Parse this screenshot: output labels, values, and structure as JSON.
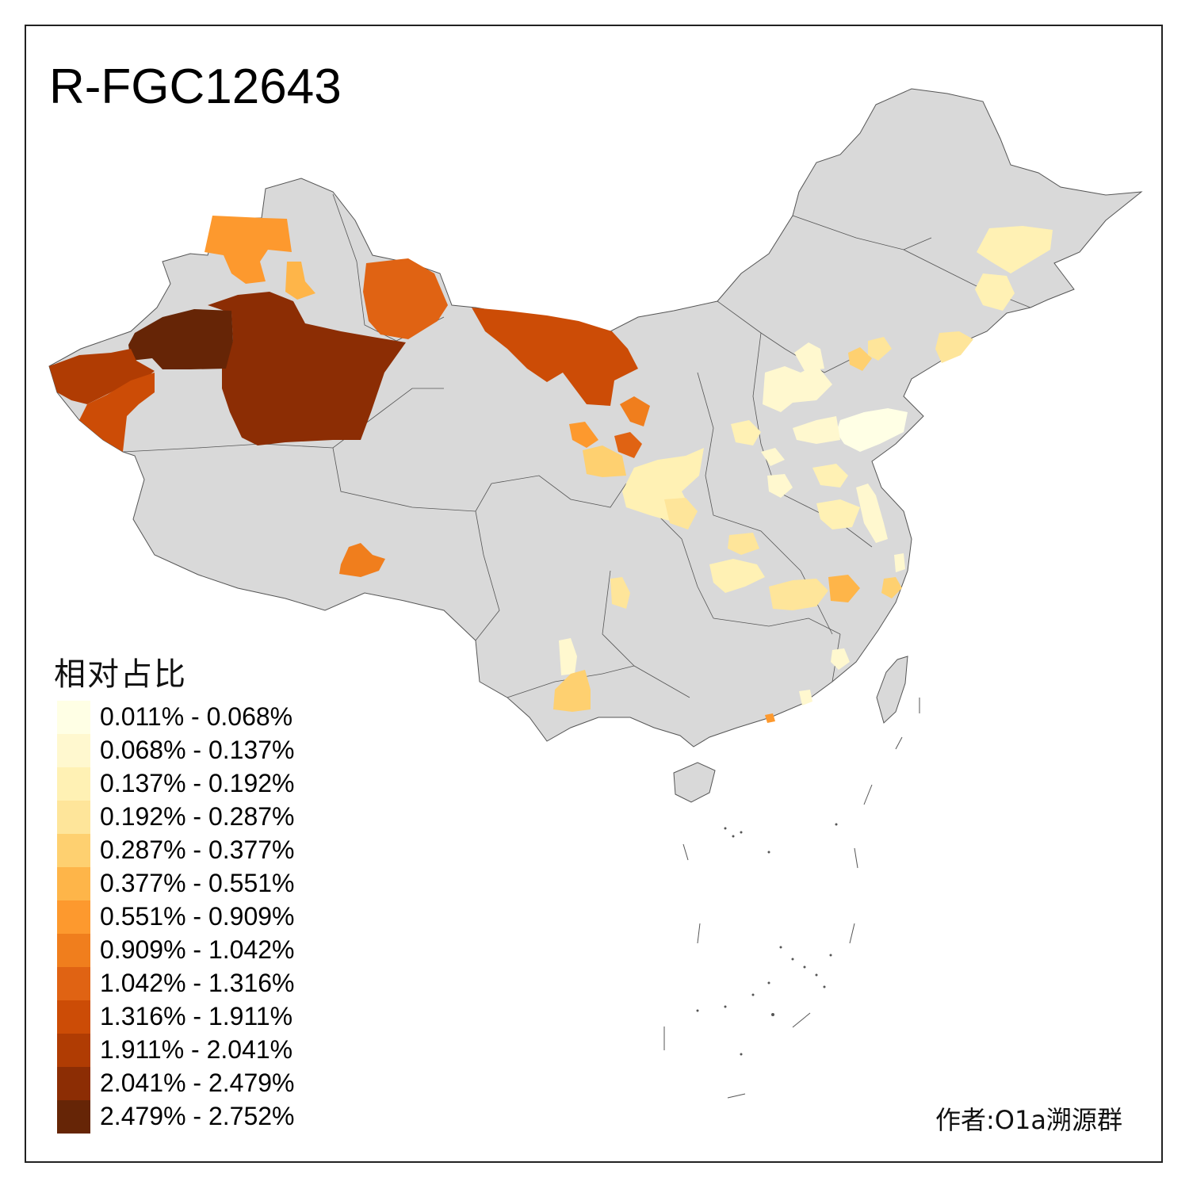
{
  "title": "R-FGC12643",
  "legend": {
    "title": "相对占比",
    "classes": [
      {
        "label": "0.011% - 0.068%",
        "color": "#ffffe5"
      },
      {
        "label": "0.068% - 0.137%",
        "color": "#fff8cf"
      },
      {
        "label": "0.137% - 0.192%",
        "color": "#fff1b4"
      },
      {
        "label": "0.192% - 0.287%",
        "color": "#fee59a"
      },
      {
        "label": "0.287% - 0.377%",
        "color": "#fed070"
      },
      {
        "label": "0.377% - 0.551%",
        "color": "#feb549"
      },
      {
        "label": "0.551% - 0.909%",
        "color": "#fd992e"
      },
      {
        "label": "0.909% - 1.042%",
        "color": "#f07e1d"
      },
      {
        "label": "1.042% - 1.316%",
        "color": "#e06313"
      },
      {
        "label": "1.316% - 1.911%",
        "color": "#cc4c06"
      },
      {
        "label": "1.911% - 2.041%",
        "color": "#b03c03"
      },
      {
        "label": "2.041% - 2.479%",
        "color": "#8c2d04"
      },
      {
        "label": "2.479% - 2.752%",
        "color": "#662506"
      }
    ]
  },
  "credit": "作者:O1a溯源群",
  "colors": {
    "no_data": "#d9d9d9",
    "border": "#555555"
  }
}
